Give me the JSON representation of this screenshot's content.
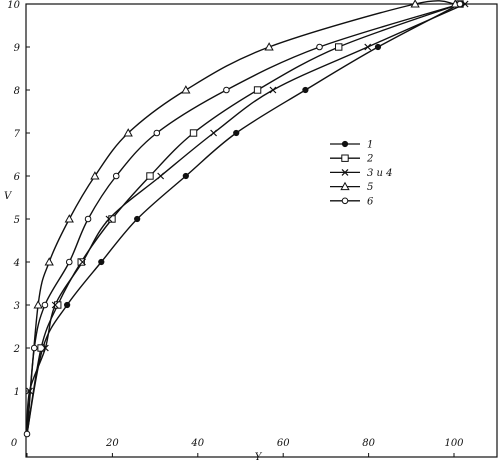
{
  "chart_data": {
    "type": "line",
    "xlabel": "Y",
    "ylabel": "V",
    "xlim": [
      0,
      110
    ],
    "ylim": [
      0,
      10
    ],
    "x_ticks": [
      "0",
      "20",
      "40",
      "60",
      "80",
      "100"
    ],
    "y_ticks": [
      "0",
      "1",
      "2",
      "3",
      "4",
      "5",
      "6",
      "7",
      "8",
      "9",
      "10"
    ],
    "grid": false,
    "legend_position": "center-right",
    "series": [
      {
        "name": "1",
        "marker": "filled-circle",
        "x": [
          0,
          3.7,
          9.4,
          17.4,
          25.8,
          37.2,
          49.0,
          65.2,
          82.2,
          101.4
        ],
        "y": [
          0,
          2,
          3,
          4,
          5,
          6,
          7,
          8,
          9,
          10
        ]
      },
      {
        "name": "2",
        "marker": "open-square",
        "x": [
          0,
          3.3,
          7.2,
          12.7,
          19.9,
          28.8,
          39.0,
          54.0,
          73.0,
          101.4
        ],
        "y": [
          0,
          2,
          3,
          4,
          5,
          6,
          7,
          8,
          9,
          10
        ]
      },
      {
        "name": "3 и 4",
        "marker": "cross",
        "x": [
          0,
          0.6,
          4.3,
          6.6,
          13.0,
          19.2,
          31.3,
          43.7,
          57.6,
          79.8,
          102.6
        ],
        "y": [
          0,
          1,
          2,
          3,
          4,
          5,
          6,
          7,
          8,
          9,
          10
        ]
      },
      {
        "name": "5",
        "marker": "open-triangle",
        "x": [
          0,
          2.6,
          5.2,
          9.9,
          15.9,
          23.7,
          37.2,
          56.7,
          90.9,
          100.3
        ],
        "y": [
          0,
          3,
          4,
          5,
          6,
          7,
          8,
          9,
          10,
          10
        ]
      },
      {
        "name": "6",
        "marker": "open-circle",
        "x": [
          0,
          1.7,
          4.2,
          9.9,
          14.3,
          20.9,
          30.4,
          46.7,
          68.5,
          101.4
        ],
        "y": [
          0,
          2,
          3,
          4,
          5,
          6,
          7,
          8,
          9,
          10
        ]
      }
    ]
  }
}
